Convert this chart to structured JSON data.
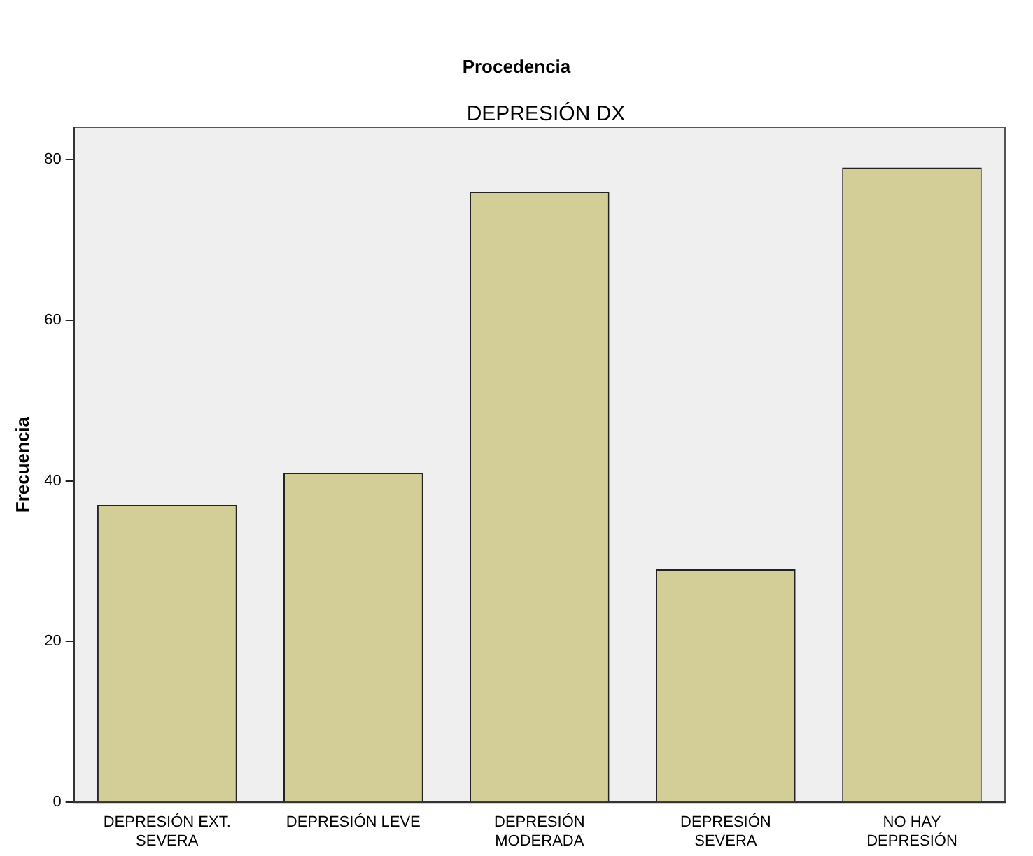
{
  "chart_data": {
    "type": "bar",
    "title": "Procedencia",
    "subtitle": "DEPRESIÓN DX",
    "ylabel": "Frecuencia",
    "categories": [
      "DEPRESIÓN EXT. SEVERA",
      "DEPRESIÓN LEVE",
      "DEPRESIÓN MODERADA",
      "DEPRESIÓN SEVERA",
      "NO HAY DEPRESIÓN"
    ],
    "values": [
      37,
      41,
      76,
      29,
      79
    ],
    "color": "#d3ce97",
    "ylim": [
      0,
      84
    ],
    "yticks": [
      0,
      20,
      40,
      60,
      80
    ],
    "grid": false,
    "legend": false
  }
}
